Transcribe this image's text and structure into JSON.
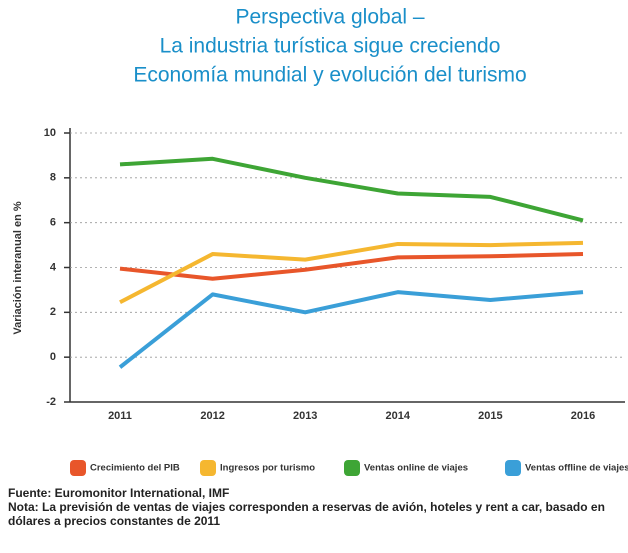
{
  "chart_data": {
    "type": "line",
    "title": [
      "Perspectiva global –",
      "La industria turística sigue creciendo",
      "Economía mundial y evolución del turismo"
    ],
    "y_label": "Variación interanual en %",
    "categories": [
      "2011",
      "2012",
      "2013",
      "2014",
      "2015",
      "2016"
    ],
    "series": [
      {
        "name": "Crecimiento del PIB",
        "color": "#e8562a",
        "values": [
          3.95,
          3.5,
          3.9,
          4.45,
          4.5,
          4.6
        ]
      },
      {
        "name": "Ingresos por turismo",
        "color": "#f5b730",
        "values": [
          2.45,
          4.6,
          4.35,
          5.05,
          5.0,
          5.1
        ]
      },
      {
        "name": "Ventas online de viajes",
        "color": "#3ea535",
        "values": [
          8.6,
          8.85,
          8.0,
          7.3,
          7.15,
          6.1
        ]
      },
      {
        "name": "Ventas offline de viajes",
        "color": "#3a9fd8",
        "values": [
          -0.45,
          2.8,
          2.0,
          2.9,
          2.55,
          2.9
        ]
      }
    ],
    "ylim": [
      -2,
      10
    ],
    "yticks": [
      -2,
      0,
      2,
      4,
      6,
      8,
      10
    ],
    "grid": true,
    "source": "Fuente: Euromonitor International, IMF",
    "note": "Nota: La previsión de ventas de viajes corresponden a reservas de avión, hoteles y rent a car, basado en dólares a precios constantes de 2011"
  }
}
